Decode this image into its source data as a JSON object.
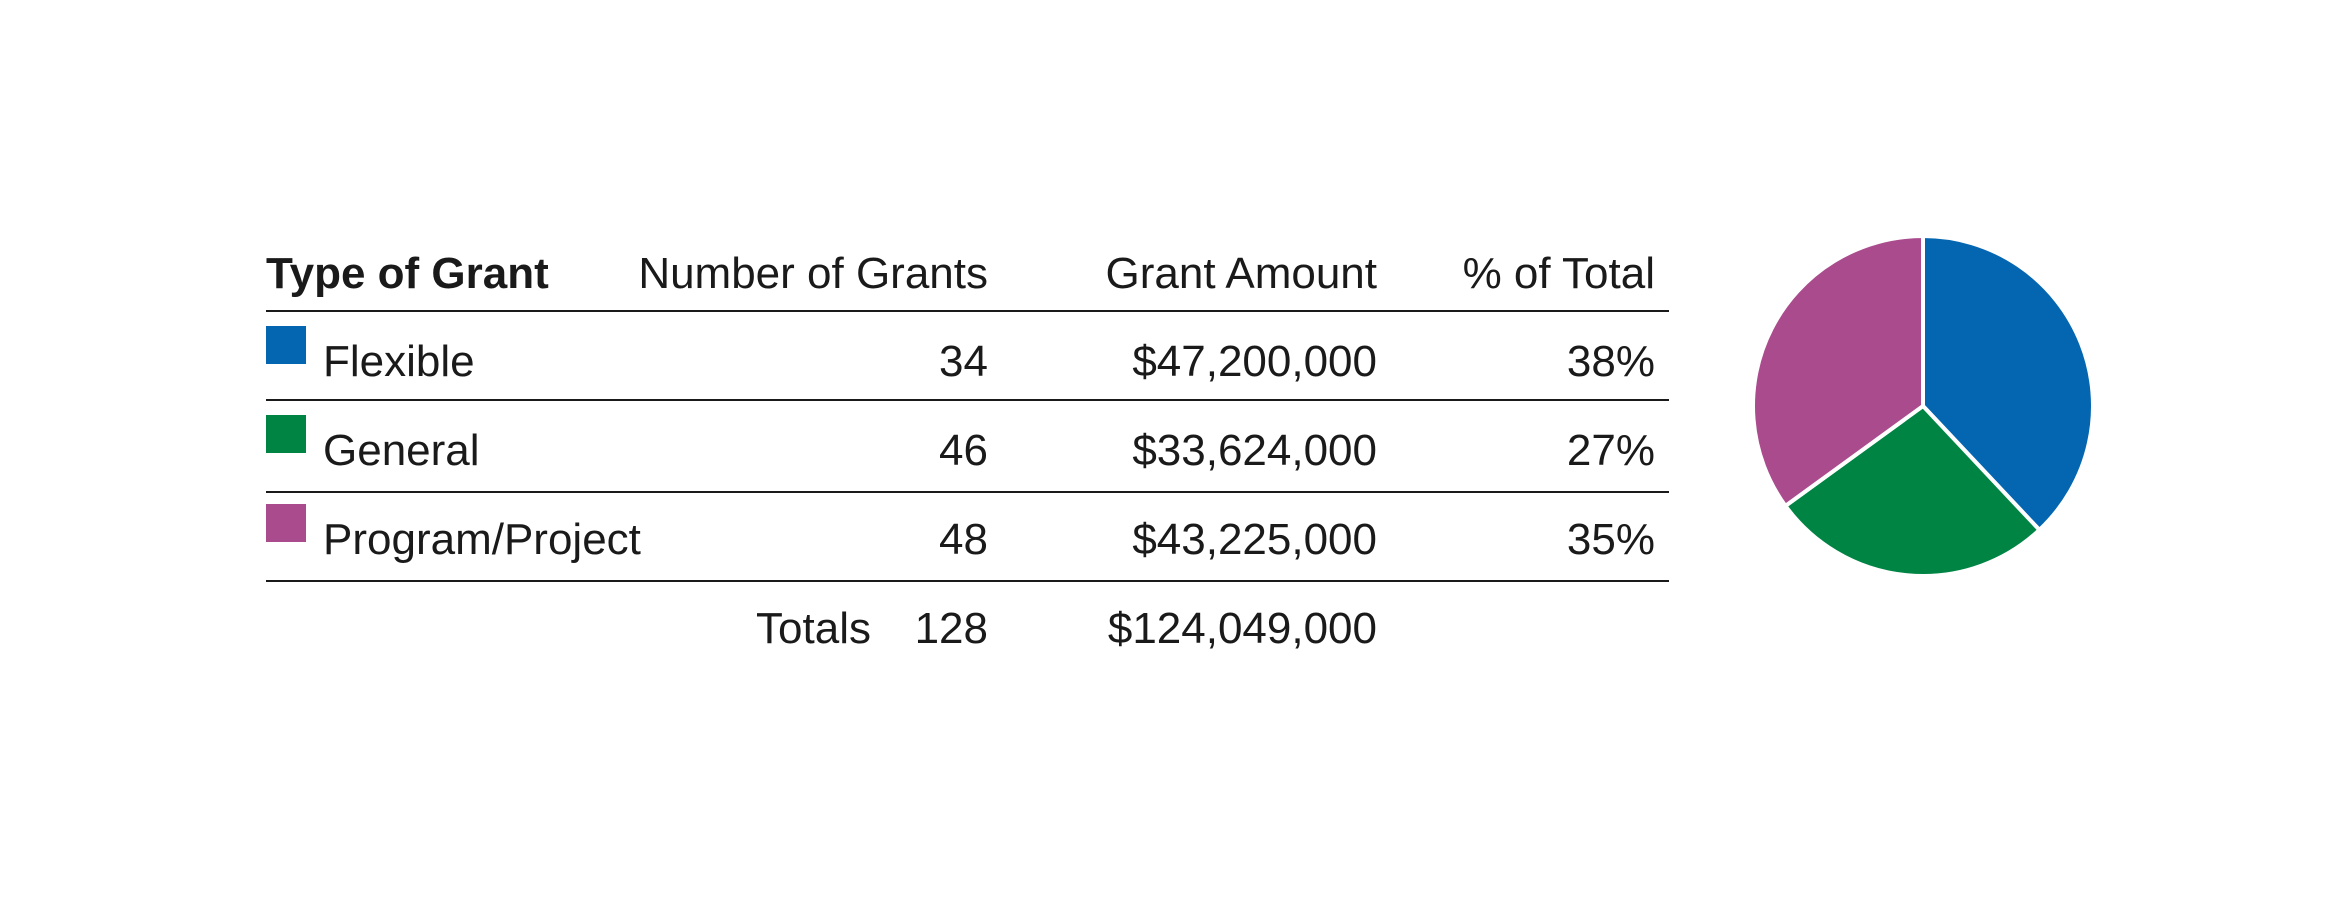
{
  "chart_data": {
    "type": "pie",
    "categories": [
      "Flexible",
      "General",
      "Program/Project"
    ],
    "values": [
      38,
      27,
      35
    ],
    "value_labels": [
      "38%",
      "27%",
      "35%"
    ],
    "colors": [
      "#0466b0",
      "#008444",
      "#a94b8c"
    ]
  },
  "table": {
    "columns": [
      "Type of Grant",
      "Number of Grants",
      "Grant Amount",
      "% of Total"
    ],
    "rows": [
      [
        34,
        "$47,200,000"
      ],
      [
        46,
        "$33,624,000"
      ],
      [
        48,
        "$43,225,000"
      ]
    ],
    "totals": {
      "label": "Totals",
      "count": 128,
      "amount": "$124,049,000"
    }
  }
}
